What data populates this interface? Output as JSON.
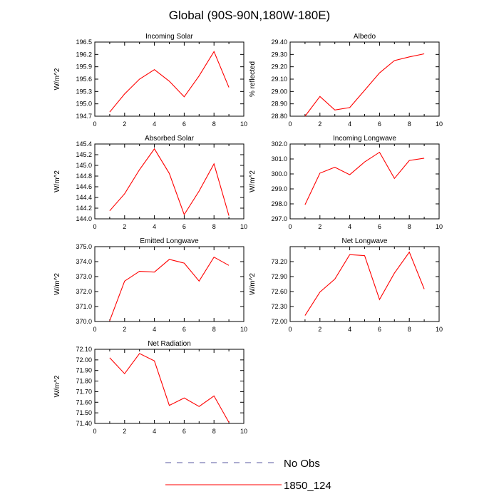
{
  "title": "Global (90S-90N,180W-180E)",
  "legend": {
    "items": [
      {
        "label": "No Obs",
        "color": "#5a5aa0",
        "dashed": true
      },
      {
        "label": "1850_124",
        "color": "#ff0000",
        "dashed": false
      }
    ]
  },
  "chart_data": [
    {
      "type": "line",
      "title": "Incoming Solar",
      "ylabel": "W/m^2",
      "xlim": [
        0,
        10
      ],
      "xticks": [
        "0",
        "2",
        "4",
        "6",
        "8",
        "10"
      ],
      "ylim": [
        194.7,
        196.5
      ],
      "yticks": [
        "194.7",
        "195.0",
        "195.3",
        "195.6",
        "195.9",
        "196.2",
        "196.5"
      ],
      "series": [
        {
          "name": "1850_124",
          "color": "#ff0000",
          "x": [
            1,
            2,
            3,
            4,
            5,
            6,
            7,
            8,
            9
          ],
          "y": [
            194.8,
            195.24,
            195.6,
            195.83,
            195.55,
            195.17,
            195.68,
            196.27,
            195.4
          ]
        }
      ]
    },
    {
      "type": "line",
      "title": "Albedo",
      "ylabel": "% reflected",
      "xlim": [
        0,
        10
      ],
      "xticks": [
        "0",
        "2",
        "4",
        "6",
        "8",
        "10"
      ],
      "ylim": [
        28.8,
        29.4
      ],
      "yticks": [
        "28.80",
        "28.90",
        "29.00",
        "29.10",
        "29.20",
        "29.30",
        "29.40"
      ],
      "series": [
        {
          "name": "1850_124",
          "color": "#ff0000",
          "x": [
            1,
            2,
            3,
            4,
            5,
            6,
            7,
            8,
            9
          ],
          "y": [
            28.8,
            28.96,
            28.85,
            28.87,
            29.01,
            29.15,
            29.25,
            29.28,
            29.305
          ]
        }
      ]
    },
    {
      "type": "line",
      "title": "Absorbed Solar",
      "ylabel": "W/m^2",
      "xlim": [
        0,
        10
      ],
      "xticks": [
        "0",
        "2",
        "4",
        "6",
        "8",
        "10"
      ],
      "ylim": [
        144.0,
        145.4
      ],
      "yticks": [
        "144.0",
        "144.2",
        "144.4",
        "144.6",
        "144.8",
        "145.0",
        "145.2",
        "145.4"
      ],
      "series": [
        {
          "name": "1850_124",
          "color": "#ff0000",
          "x": [
            1,
            2,
            3,
            4,
            5,
            6,
            7,
            8,
            9
          ],
          "y": [
            144.15,
            144.47,
            144.92,
            145.31,
            144.85,
            144.08,
            144.52,
            145.03,
            144.06
          ]
        }
      ]
    },
    {
      "type": "line",
      "title": "Incoming Longwave",
      "ylabel": "W/m^2",
      "xlim": [
        0,
        10
      ],
      "xticks": [
        "0",
        "2",
        "4",
        "6",
        "8",
        "10"
      ],
      "ylim": [
        297.0,
        302.0
      ],
      "yticks": [
        "297.0",
        "298.0",
        "299.0",
        "300.0",
        "301.0",
        "302.0"
      ],
      "series": [
        {
          "name": "1850_124",
          "color": "#ff0000",
          "x": [
            1,
            2,
            3,
            4,
            5,
            6,
            7,
            8,
            9
          ],
          "y": [
            297.95,
            300.05,
            300.45,
            299.95,
            300.8,
            301.45,
            299.7,
            300.9,
            301.05
          ]
        }
      ]
    },
    {
      "type": "line",
      "title": "Emitted Longwave",
      "ylabel": "W/m^2",
      "xlim": [
        0,
        10
      ],
      "xticks": [
        "0",
        "2",
        "4",
        "6",
        "8",
        "10"
      ],
      "ylim": [
        370.0,
        375.0
      ],
      "yticks": [
        "370.0",
        "371.0",
        "372.0",
        "373.0",
        "374.0",
        "375.0"
      ],
      "series": [
        {
          "name": "1850_124",
          "color": "#ff0000",
          "x": [
            1,
            2,
            3,
            4,
            5,
            6,
            7,
            8,
            9
          ],
          "y": [
            370.05,
            372.7,
            373.35,
            373.3,
            374.15,
            373.9,
            372.7,
            374.3,
            373.75
          ]
        }
      ]
    },
    {
      "type": "line",
      "title": "Net Longwave",
      "ylabel": "W/m^2",
      "xlim": [
        0,
        10
      ],
      "xticks": [
        "0",
        "2",
        "4",
        "6",
        "8",
        "10"
      ],
      "ylim": [
        72.0,
        73.5
      ],
      "yticks": [
        "72.00",
        "72.30",
        "72.60",
        "72.90",
        "73.20"
      ],
      "series": [
        {
          "name": "1850_124",
          "color": "#ff0000",
          "x": [
            1,
            2,
            3,
            4,
            5,
            6,
            7,
            8,
            9
          ],
          "y": [
            72.12,
            72.59,
            72.85,
            73.34,
            73.32,
            72.44,
            72.97,
            73.39,
            72.65
          ]
        }
      ]
    },
    {
      "type": "line",
      "title": "Net Radiation",
      "ylabel": "W/m^2",
      "xlim": [
        0,
        10
      ],
      "xticks": [
        "0",
        "2",
        "4",
        "6",
        "8",
        "10"
      ],
      "ylim": [
        71.4,
        72.1
      ],
      "yticks": [
        "71.40",
        "71.50",
        "71.60",
        "71.70",
        "71.80",
        "71.90",
        "72.00",
        "72.10"
      ],
      "series": [
        {
          "name": "1850_124",
          "color": "#ff0000",
          "x": [
            1,
            2,
            3,
            4,
            5,
            6,
            7,
            8,
            9
          ],
          "y": [
            72.02,
            71.87,
            72.06,
            71.99,
            71.57,
            71.64,
            71.56,
            71.66,
            71.41
          ]
        }
      ]
    }
  ]
}
